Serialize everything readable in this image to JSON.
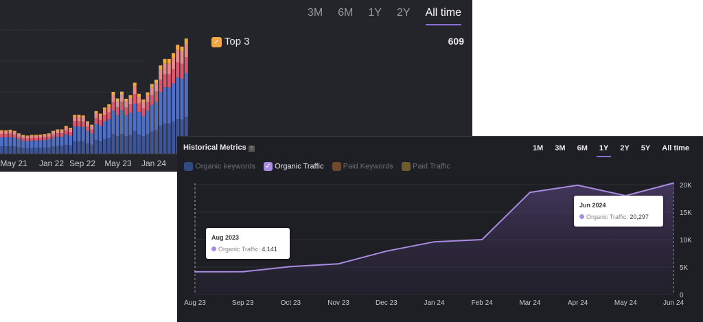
{
  "top_panel": {
    "range_tabs": [
      "3M",
      "6M",
      "1Y",
      "2Y",
      "All time"
    ],
    "active_tab": "All time",
    "legend": {
      "label": "Top 3",
      "value": "609",
      "color": "#f0a844"
    },
    "chart_data": {
      "type": "bar",
      "stacked": true,
      "x_tick_labels": [
        "May 21",
        "Jan 22",
        "Sep 22",
        "May 23",
        "Jan 24"
      ],
      "totals": [
        0.76,
        0.76,
        0.78,
        0.74,
        0.66,
        0.61,
        0.59,
        0.61,
        0.61,
        0.62,
        0.64,
        0.66,
        0.74,
        0.79,
        0.79,
        0.9,
        0.84,
        1.26,
        1.26,
        1.24,
        1.05,
        0.94,
        1.38,
        1.3,
        1.5,
        1.6,
        2.0,
        1.79,
        2.01,
        1.78,
        1.9,
        2.3,
        1.94,
        1.76,
        1.99,
        2.26,
        2.4,
        2.86,
        3.07,
        3.07,
        3.26,
        3.53,
        3.47,
        3.73
      ],
      "segment_shares": [
        0.32,
        0.38,
        0.14,
        0.11,
        0.05
      ],
      "segment_colors": [
        "#3d5496",
        "#4f6fc4",
        "#d9586e",
        "#e88a8a",
        "#f0a844"
      ],
      "grid": true
    }
  },
  "bottom_panel": {
    "title": "Historical Metrics",
    "help_icon": "?",
    "range_tabs": [
      "1M",
      "3M",
      "6M",
      "1Y",
      "2Y",
      "5Y",
      "All time"
    ],
    "active_tab": "1Y",
    "legend": [
      {
        "label": "Organic keywords",
        "checked": false,
        "color": "#3a5a9a"
      },
      {
        "label": "Organic Traffic",
        "checked": true,
        "color": "#a98be0"
      },
      {
        "label": "Paid Keywords",
        "checked": false,
        "color": "#8a5a30"
      },
      {
        "label": "Paid Traffic",
        "checked": false,
        "color": "#8a6a30"
      }
    ],
    "tooltips": [
      {
        "date": "Aug 2023",
        "label": "Organic Traffic:",
        "value": "4,141"
      },
      {
        "date": "Jun 2024",
        "label": "Organic Traffic:",
        "value": "20,297"
      }
    ],
    "chart_data": {
      "type": "area",
      "x": [
        "Aug 23",
        "Sep 23",
        "Oct 23",
        "Nov 23",
        "Dec 23",
        "Jan 24",
        "Feb 24",
        "Mar 24",
        "Apr 24",
        "May 24",
        "Jun 24"
      ],
      "series": [
        {
          "name": "Organic Traffic",
          "values": [
            4141,
            4150,
            5100,
            5600,
            7900,
            9600,
            10000,
            18600,
            19900,
            18000,
            20297
          ],
          "color": "#a98be0"
        }
      ],
      "y_ticks": [
        "0",
        "5K",
        "10K",
        "15K",
        "20K"
      ],
      "ylim": [
        0,
        20000
      ],
      "grid": true
    }
  }
}
